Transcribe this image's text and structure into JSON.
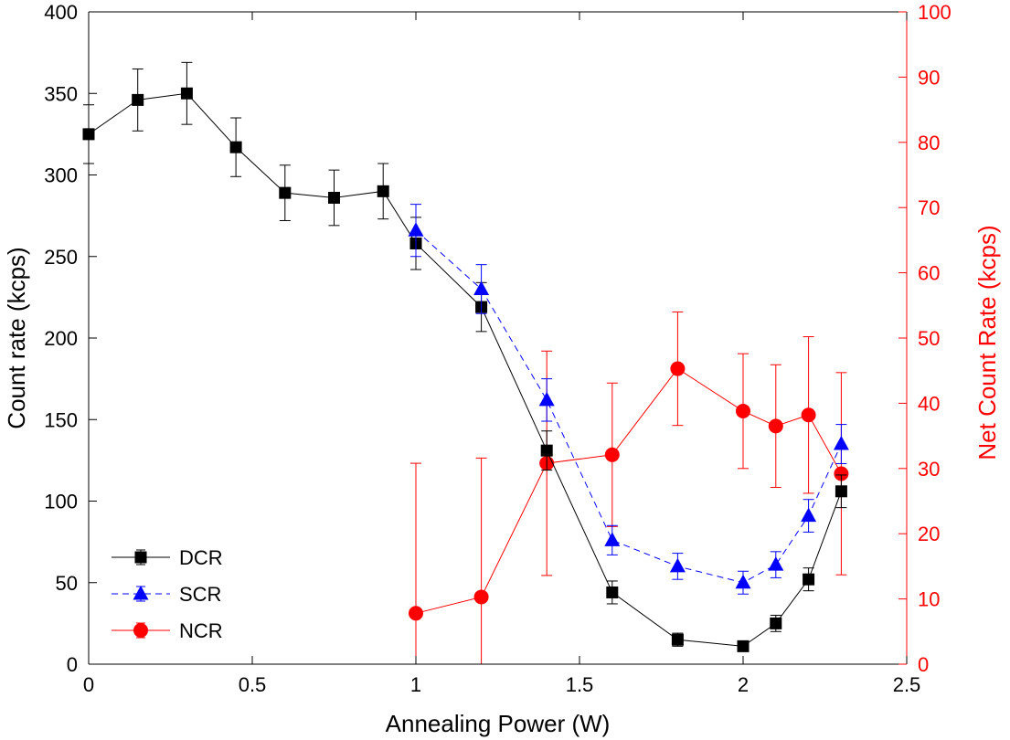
{
  "chart_data": {
    "type": "line",
    "xlabel": "Annealing Power (W)",
    "ylabel_left": "Count rate (kcps)",
    "ylabel_right": "Net Count Rate (kcps)",
    "xlim": [
      0,
      2.5
    ],
    "ylim_left": [
      0,
      400
    ],
    "ylim_right": [
      0,
      100
    ],
    "x_ticks": [
      "0",
      "0.5",
      "1",
      "1.5",
      "2",
      "2.5"
    ],
    "y_ticks_left": [
      "0",
      "50",
      "100",
      "150",
      "200",
      "250",
      "300",
      "350",
      "400"
    ],
    "y_ticks_right": [
      "0",
      "10",
      "20",
      "30",
      "40",
      "50",
      "60",
      "70",
      "80",
      "90",
      "100"
    ],
    "legend_position": "bottom-left",
    "grid": false,
    "series": [
      {
        "name": "DCR",
        "axis": "left",
        "color": "#000000",
        "marker": "square",
        "line_style": "solid",
        "x": [
          0,
          0.15,
          0.3,
          0.45,
          0.6,
          0.75,
          0.9,
          1.0,
          1.2,
          1.4,
          1.6,
          1.8,
          2.0,
          2.1,
          2.2,
          2.3
        ],
        "y": [
          325,
          346,
          350,
          317,
          289,
          286,
          290,
          258,
          219,
          131,
          44,
          15,
          11,
          25,
          52,
          106
        ],
        "err": [
          18,
          19,
          19,
          18,
          17,
          17,
          17,
          16,
          15,
          12,
          7,
          4,
          3,
          5,
          7,
          10
        ]
      },
      {
        "name": "SCR",
        "axis": "left",
        "color": "#0000ff",
        "marker": "triangle",
        "line_style": "dashed",
        "x": [
          1.0,
          1.2,
          1.4,
          1.6,
          1.8,
          2.0,
          2.1,
          2.2,
          2.3
        ],
        "y": [
          266,
          230,
          162,
          76,
          60,
          50,
          61,
          91,
          135
        ],
        "err": [
          16,
          15,
          13,
          9,
          8,
          7,
          8,
          10,
          12
        ]
      },
      {
        "name": "NCR",
        "axis": "right",
        "color": "#ff0000",
        "marker": "circle",
        "line_style": "solid",
        "x": [
          1.0,
          1.2,
          1.4,
          1.6,
          1.8,
          2.0,
          2.1,
          2.2,
          2.3
        ],
        "y": [
          7.8,
          10.3,
          30.8,
          32.1,
          45.3,
          38.8,
          36.5,
          38.2,
          29.2
        ],
        "err": [
          23,
          21.3,
          17.2,
          11,
          8.7,
          8.8,
          9.4,
          12,
          15.5
        ]
      }
    ]
  }
}
